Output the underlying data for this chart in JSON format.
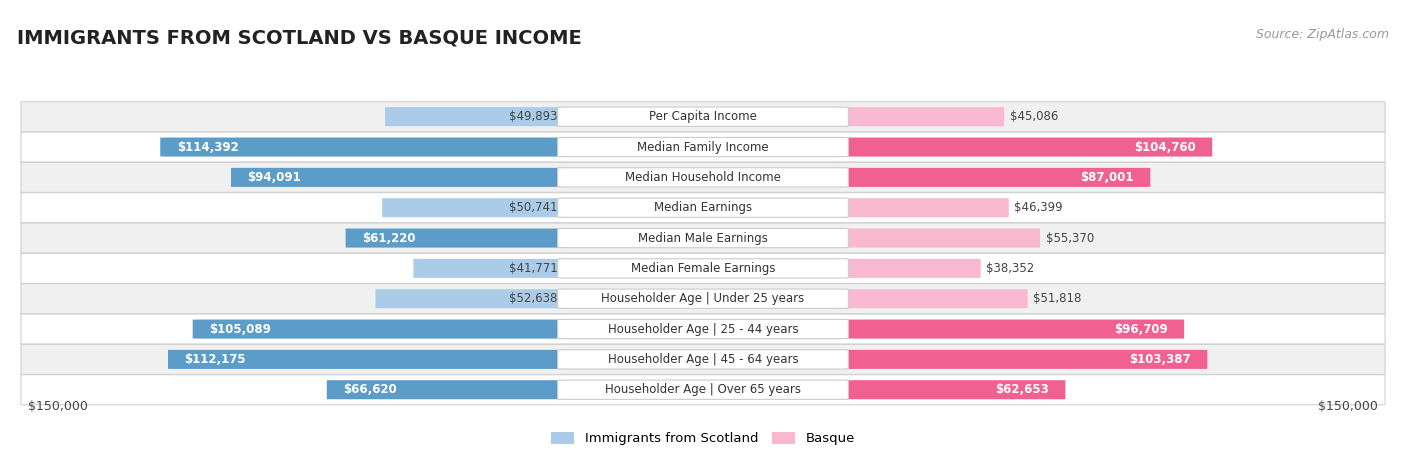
{
  "title": "IMMIGRANTS FROM SCOTLAND VS BASQUE INCOME",
  "source": "Source: ZipAtlas.com",
  "categories": [
    "Per Capita Income",
    "Median Family Income",
    "Median Household Income",
    "Median Earnings",
    "Median Male Earnings",
    "Median Female Earnings",
    "Householder Age | Under 25 years",
    "Householder Age | 25 - 44 years",
    "Householder Age | 45 - 64 years",
    "Householder Age | Over 65 years"
  ],
  "scotland_values": [
    49893,
    114392,
    94091,
    50741,
    61220,
    41771,
    52638,
    105089,
    112175,
    66620
  ],
  "basque_values": [
    45086,
    104760,
    87001,
    46399,
    55370,
    38352,
    51818,
    96709,
    103387,
    62653
  ],
  "scotland_color_light": "#aacce8",
  "scotland_color_dark": "#5b9dc8",
  "basque_color_light": "#f8b8d0",
  "basque_color_dark": "#f06090",
  "scotland_label": "Immigrants from Scotland",
  "basque_label": "Basque",
  "max_val": 150000,
  "xlabel_left": "$150,000",
  "xlabel_right": "$150,000",
  "background_color": "#ffffff",
  "row_colors": [
    "#f0f0f0",
    "#ffffff"
  ],
  "label_fontsize": 8.5,
  "title_fontsize": 14,
  "value_fontsize": 8.5,
  "source_fontsize": 9
}
